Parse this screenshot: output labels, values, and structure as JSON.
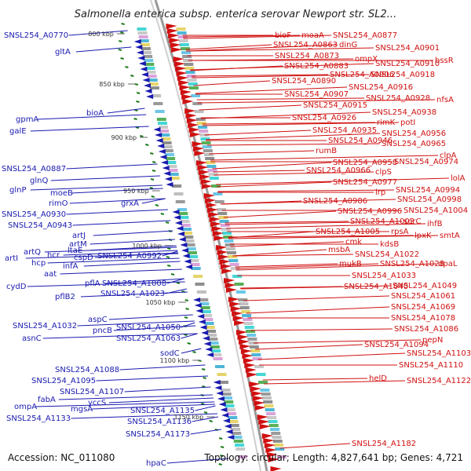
{
  "title": "Salmonella enterica subsp. enterica serovar Newport str. SL2...",
  "accession": "Accession: NC_011080",
  "topology": "Topology: circular; Length: 4,827,641 bp; Genes: 4,721",
  "colors": {
    "forward_strand": "#d01010",
    "reverse_strand": "#1a1ab0",
    "backbone": "#888888",
    "gc_skew_dash": "#1a7a1a"
  },
  "tick_labels": [
    "800 kbp",
    "850 kbp",
    "900 kbp",
    "950 kbp",
    "1000 kbp",
    "1050 kbp",
    "1100 kbp",
    "1150 kbp"
  ],
  "left_labels": [
    "SNSL254_A0770",
    "gltA",
    "bioA",
    "gpmA",
    "galE",
    "SNSL254_A0887",
    "glnQ",
    "glnP",
    "moeB",
    "rimO",
    "grxA",
    "SNSL254_A0930",
    "SNSL254_A0943",
    "artJ",
    "artM",
    "artQ",
    "hcr",
    "hcp",
    "artI",
    "aat",
    "cydD",
    "ltaE",
    "cspD",
    "infA",
    "SNSL254_A0992",
    "pflA",
    "SNSL254_A1008",
    "pflB2",
    "SNSL254_A1023",
    "aspC",
    "SNSL254_A1032",
    "asnC",
    "pncB",
    "SNSL254_A1050",
    "SNSL254_A1063",
    "sodC",
    "SNSL254_A1088",
    "SNSL254_A1095",
    "SNSL254_A1107",
    "fabA",
    "yccS",
    "ompA",
    "mgsA",
    "SNSL254_A1133",
    "SNSL254_A1135",
    "SNSL254_A1136",
    "SNSL254_A1173",
    "hpaC"
  ],
  "right_labels": [
    "bioF",
    "moaA",
    "SNSL254_A0877",
    "SNSL254_A0863",
    "dinG",
    "SNSL254_A0873",
    "ompX",
    "SNSL254_A0901",
    "SNSL254_A0883",
    "SNSL254_A0910",
    "bssR",
    "SNSL254_A0906",
    "SNSL254_A0918",
    "SNSL254_A0890",
    "SNSL254_A0916",
    "SNSL254_A0907",
    "SNSL254_A0928",
    "nfsA",
    "SNSL254_A0915",
    "SNSL254_A0938",
    "SNSL254_A0926",
    "rimK",
    "potI",
    "SNSL254_A0935",
    "SNSL254_A0956",
    "SNSL254_A0946",
    "SNSL254_A0965",
    "rumB",
    "clpA",
    "SNSL254_A0958",
    "SNSL254_A0974",
    "SNSL254_A0966",
    "clpS",
    "SNSL254_A0977",
    "lolA",
    "lrp",
    "SNSL254_A0994",
    "SNSL254_A0986",
    "SNSL254_A0998",
    "SNSL254_A0996",
    "SNSL254_A1004",
    "SNSL254_A1002",
    "serC",
    "ihfB",
    "SNSL254_A1005",
    "rpsA",
    "lpxK",
    "smtA",
    "cmk",
    "msbA",
    "kdsB",
    "SNSL254_A1022",
    "mukB",
    "SNSL254_A1028",
    "dpaL",
    "SNSL254_A1033",
    "SNSL254_A1040",
    "SNSL254_A1049",
    "SNSL254_A1061",
    "SNSL254_A1069",
    "SNSL254_A1078",
    "SNSL254_A1086",
    "pepN",
    "SNSL254_A1094",
    "SNSL254_A1103",
    "SNSL254_A1110",
    "helD",
    "SNSL254_A1122",
    "SNSL254_A1182"
  ]
}
